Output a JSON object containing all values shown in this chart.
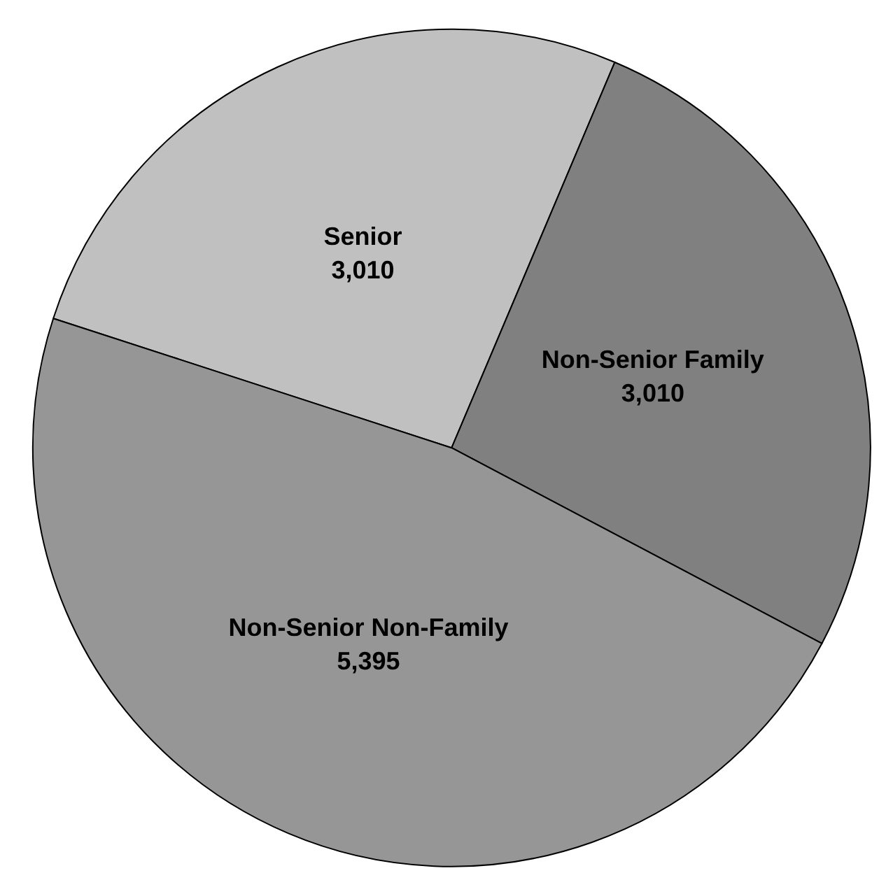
{
  "chart_data": {
    "type": "pie",
    "categories": [
      "Senior",
      "Non-Senior Family",
      "Non-Senior Non-Family"
    ],
    "values": [
      3010,
      3010,
      5395
    ],
    "colors": [
      "#c0c0c0",
      "#808080",
      "#969696"
    ],
    "value_labels": [
      "3,010",
      "3,010",
      "5,395"
    ]
  }
}
